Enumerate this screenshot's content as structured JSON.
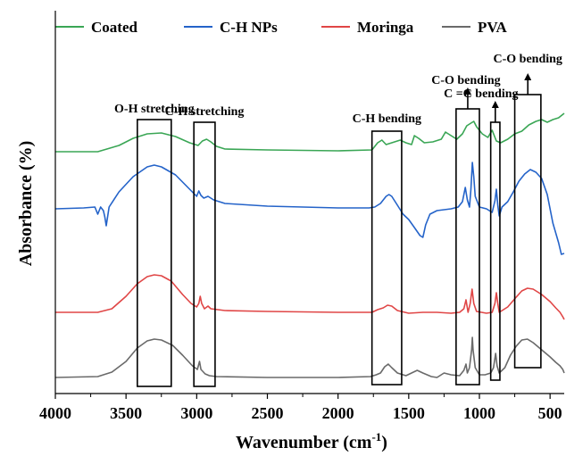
{
  "chart_data": {
    "type": "line",
    "xlabel_main": "Wavenumber (cm",
    "xlabel_sup": "-1",
    "xlabel_end": ")",
    "ylabel": "Absorbance (%)",
    "xlim": [
      4000,
      400
    ],
    "x_reversed": true,
    "y_ticks_shown": false,
    "xticks": [
      {
        "value": 4000,
        "label": "4000"
      },
      {
        "value": 3500,
        "label": "3500"
      },
      {
        "value": 3000,
        "label": "3000"
      },
      {
        "value": 2500,
        "label": "2500"
      },
      {
        "value": 2000,
        "label": "2000"
      },
      {
        "value": 1500,
        "label": "1500"
      },
      {
        "value": 1000,
        "label": "1000"
      },
      {
        "value": 500,
        "label": "500"
      }
    ],
    "legend_placement": "top",
    "series": [
      {
        "name": "Coated",
        "color": "#3aa655",
        "points": [
          [
            4000,
            170
          ],
          [
            3700,
            170
          ],
          [
            3550,
            163
          ],
          [
            3450,
            155
          ],
          [
            3350,
            150
          ],
          [
            3250,
            149
          ],
          [
            3150,
            153
          ],
          [
            3050,
            160
          ],
          [
            2990,
            163
          ],
          [
            2960,
            158
          ],
          [
            2930,
            156
          ],
          [
            2900,
            159
          ],
          [
            2860,
            164
          ],
          [
            2800,
            167
          ],
          [
            2500,
            168
          ],
          [
            2000,
            169
          ],
          [
            1760,
            168
          ],
          [
            1720,
            160
          ],
          [
            1690,
            157
          ],
          [
            1660,
            162
          ],
          [
            1620,
            160
          ],
          [
            1560,
            157
          ],
          [
            1520,
            160
          ],
          [
            1480,
            162
          ],
          [
            1460,
            152
          ],
          [
            1430,
            155
          ],
          [
            1390,
            160
          ],
          [
            1330,
            159
          ],
          [
            1270,
            156
          ],
          [
            1240,
            148
          ],
          [
            1200,
            152
          ],
          [
            1160,
            156
          ],
          [
            1120,
            150
          ],
          [
            1090,
            141
          ],
          [
            1060,
            138
          ],
          [
            1040,
            136
          ],
          [
            1020,
            142
          ],
          [
            980,
            150
          ],
          [
            940,
            154
          ],
          [
            910,
            146
          ],
          [
            880,
            158
          ],
          [
            850,
            160
          ],
          [
            800,
            156
          ],
          [
            750,
            150
          ],
          [
            700,
            147
          ],
          [
            650,
            140
          ],
          [
            600,
            136
          ],
          [
            560,
            134
          ],
          [
            520,
            137
          ],
          [
            480,
            134
          ],
          [
            440,
            132
          ],
          [
            400,
            127
          ]
        ]
      },
      {
        "name": "C-H NPs",
        "color": "#2463c9",
        "points": [
          [
            4000,
            234
          ],
          [
            3800,
            233
          ],
          [
            3720,
            232
          ],
          [
            3700,
            240
          ],
          [
            3680,
            232
          ],
          [
            3660,
            236
          ],
          [
            3650,
            243
          ],
          [
            3640,
            253
          ],
          [
            3620,
            232
          ],
          [
            3550,
            215
          ],
          [
            3450,
            198
          ],
          [
            3350,
            187
          ],
          [
            3300,
            185
          ],
          [
            3250,
            187
          ],
          [
            3150,
            196
          ],
          [
            3050,
            212
          ],
          [
            3000,
            220
          ],
          [
            2985,
            214
          ],
          [
            2970,
            219
          ],
          [
            2950,
            222
          ],
          [
            2920,
            220
          ],
          [
            2880,
            224
          ],
          [
            2800,
            228
          ],
          [
            2500,
            231
          ],
          [
            2000,
            233
          ],
          [
            1780,
            233
          ],
          [
            1740,
            232
          ],
          [
            1700,
            228
          ],
          [
            1660,
            220
          ],
          [
            1640,
            218
          ],
          [
            1620,
            220
          ],
          [
            1580,
            230
          ],
          [
            1540,
            240
          ],
          [
            1500,
            246
          ],
          [
            1460,
            255
          ],
          [
            1420,
            264
          ],
          [
            1400,
            266
          ],
          [
            1380,
            252
          ],
          [
            1350,
            240
          ],
          [
            1300,
            236
          ],
          [
            1250,
            235
          ],
          [
            1200,
            234
          ],
          [
            1150,
            232
          ],
          [
            1120,
            226
          ],
          [
            1100,
            210
          ],
          [
            1085,
            224
          ],
          [
            1070,
            232
          ],
          [
            1060,
            212
          ],
          [
            1050,
            182
          ],
          [
            1040,
            198
          ],
          [
            1030,
            220
          ],
          [
            1000,
            232
          ],
          [
            950,
            234
          ],
          [
            910,
            238
          ],
          [
            890,
            225
          ],
          [
            880,
            212
          ],
          [
            870,
            230
          ],
          [
            860,
            242
          ],
          [
            840,
            232
          ],
          [
            800,
            226
          ],
          [
            760,
            215
          ],
          [
            720,
            203
          ],
          [
            680,
            195
          ],
          [
            640,
            190
          ],
          [
            600,
            193
          ],
          [
            560,
            200
          ],
          [
            520,
            218
          ],
          [
            480,
            250
          ],
          [
            440,
            272
          ],
          [
            420,
            285
          ],
          [
            400,
            284
          ]
        ]
      },
      {
        "name": "Moringa",
        "color": "#e04646",
        "points": [
          [
            4000,
            350
          ],
          [
            3700,
            350
          ],
          [
            3600,
            346
          ],
          [
            3500,
            332
          ],
          [
            3420,
            318
          ],
          [
            3350,
            310
          ],
          [
            3300,
            308
          ],
          [
            3250,
            309
          ],
          [
            3180,
            315
          ],
          [
            3100,
            330
          ],
          [
            3040,
            340
          ],
          [
            3000,
            344
          ],
          [
            2985,
            340
          ],
          [
            2975,
            332
          ],
          [
            2965,
            340
          ],
          [
            2945,
            346
          ],
          [
            2920,
            343
          ],
          [
            2900,
            346
          ],
          [
            2800,
            348
          ],
          [
            2500,
            349
          ],
          [
            2000,
            350
          ],
          [
            1760,
            350
          ],
          [
            1720,
            347
          ],
          [
            1680,
            345
          ],
          [
            1650,
            342
          ],
          [
            1620,
            343
          ],
          [
            1580,
            348
          ],
          [
            1500,
            351
          ],
          [
            1400,
            350
          ],
          [
            1300,
            350
          ],
          [
            1200,
            351
          ],
          [
            1140,
            350
          ],
          [
            1110,
            346
          ],
          [
            1095,
            336
          ],
          [
            1080,
            350
          ],
          [
            1065,
            340
          ],
          [
            1052,
            324
          ],
          [
            1040,
            340
          ],
          [
            1020,
            349
          ],
          [
            950,
            351
          ],
          [
            910,
            350
          ],
          [
            890,
            340
          ],
          [
            880,
            328
          ],
          [
            870,
            340
          ],
          [
            860,
            350
          ],
          [
            800,
            344
          ],
          [
            740,
            333
          ],
          [
            700,
            326
          ],
          [
            660,
            323
          ],
          [
            620,
            324
          ],
          [
            560,
            330
          ],
          [
            500,
            338
          ],
          [
            460,
            345
          ],
          [
            430,
            350
          ],
          [
            410,
            355
          ],
          [
            400,
            358
          ]
        ]
      },
      {
        "name": "PVA",
        "color": "#6a6a6a",
        "points": [
          [
            4000,
            423
          ],
          [
            3700,
            422
          ],
          [
            3600,
            417
          ],
          [
            3500,
            405
          ],
          [
            3420,
            390
          ],
          [
            3350,
            382
          ],
          [
            3300,
            380
          ],
          [
            3250,
            381
          ],
          [
            3170,
            387
          ],
          [
            3100,
            398
          ],
          [
            3030,
            410
          ],
          [
            2995,
            414
          ],
          [
            2980,
            405
          ],
          [
            2970,
            414
          ],
          [
            2940,
            419
          ],
          [
            2910,
            421
          ],
          [
            2860,
            422
          ],
          [
            2500,
            423
          ],
          [
            2000,
            423
          ],
          [
            1770,
            422
          ],
          [
            1730,
            420
          ],
          [
            1700,
            418
          ],
          [
            1670,
            411
          ],
          [
            1645,
            408
          ],
          [
            1620,
            412
          ],
          [
            1580,
            418
          ],
          [
            1520,
            421
          ],
          [
            1440,
            415
          ],
          [
            1400,
            418
          ],
          [
            1340,
            422
          ],
          [
            1300,
            423
          ],
          [
            1250,
            418
          ],
          [
            1200,
            420
          ],
          [
            1140,
            421
          ],
          [
            1110,
            415
          ],
          [
            1095,
            408
          ],
          [
            1085,
            418
          ],
          [
            1070,
            412
          ],
          [
            1055,
            392
          ],
          [
            1050,
            378
          ],
          [
            1045,
            392
          ],
          [
            1030,
            412
          ],
          [
            1000,
            420
          ],
          [
            960,
            420
          ],
          [
            920,
            418
          ],
          [
            900,
            412
          ],
          [
            885,
            396
          ],
          [
            875,
            410
          ],
          [
            860,
            418
          ],
          [
            820,
            412
          ],
          [
            780,
            398
          ],
          [
            740,
            388
          ],
          [
            700,
            381
          ],
          [
            660,
            380
          ],
          [
            620,
            384
          ],
          [
            560,
            392
          ],
          [
            500,
            400
          ],
          [
            460,
            406
          ],
          [
            430,
            410
          ],
          [
            410,
            414
          ],
          [
            400,
            418
          ]
        ]
      }
    ],
    "annotations": [
      {
        "text": "O-H stretching",
        "x_from": 3420,
        "x_to": 3180,
        "y_top": 134,
        "y_bottom": 433,
        "arrow": false
      },
      {
        "text": "C-H stretching",
        "x_from": 3020,
        "x_to": 2870,
        "y_top": 137,
        "y_bottom": 433,
        "arrow": false
      },
      {
        "text": "C-H bending",
        "x_from": 1760,
        "x_to": 1550,
        "y_top": 147,
        "y_bottom": 431,
        "arrow": false
      },
      {
        "text": "C-O bending",
        "x_from": 1165,
        "x_to": 1000,
        "y_top": 122,
        "y_bottom": 431,
        "arrow": true
      },
      {
        "text": "C =C bending",
        "x_from": 920,
        "x_to": 855,
        "y_top": 137,
        "y_bottom": 426,
        "arrow": true
      },
      {
        "text": "C-O bending",
        "x_from": 750,
        "x_to": 565,
        "y_top": 106,
        "y_bottom": 412,
        "arrow": true
      }
    ]
  }
}
